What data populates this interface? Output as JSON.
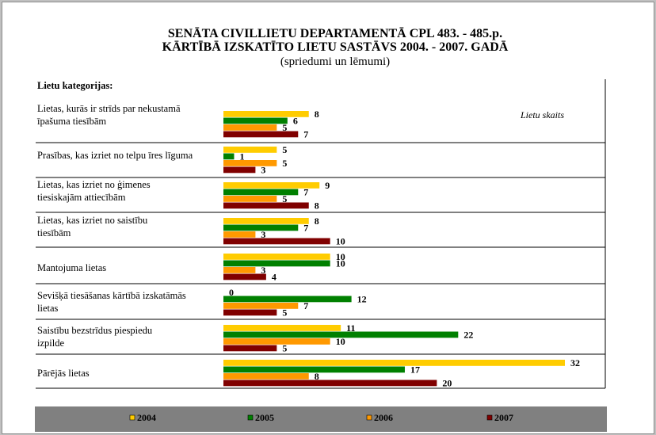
{
  "chart_data": {
    "type": "bar",
    "orientation": "horizontal",
    "title_lines": [
      "SENĀTA CIVILLIETU DEPARTAMENTĀ  CPL 483. - 485.p.",
      "KĀRTĪBĀ IZSKATĪTO LIETU SASTĀVS 2004. - 2007. GADĀ"
    ],
    "subtitle": "(spriedumi un lēmumi)",
    "category_heading": "Lietu kategorijas:",
    "value_caption": "Lietu skaits",
    "categories": [
      [
        "Lietas, kurās ir strīds par nekustamā",
        "īpašuma tiesībām"
      ],
      [
        "Prasības, kas izriet no telpu īres līguma"
      ],
      [
        "Lietas, kas izriet  no ģimenes",
        "tiesiskajām attiecībām"
      ],
      [
        "Lietas, kas izriet  no saistību",
        "tiesībām"
      ],
      [
        "Mantojuma lietas"
      ],
      [
        "Sevišķā tiesāšanas kārtībā izskatāmās",
        "lietas"
      ],
      [
        "Saistību bezstrīdus piespiedu",
        "izpilde"
      ],
      [
        "Pārējās lietas"
      ]
    ],
    "series": [
      {
        "name": "2004",
        "color": "#ffcc00",
        "values": [
          8,
          5,
          9,
          8,
          10,
          0,
          11,
          32
        ]
      },
      {
        "name": "2005",
        "color": "#008000",
        "values": [
          6,
          1,
          7,
          7,
          10,
          12,
          22,
          17
        ]
      },
      {
        "name": "2006",
        "color": "#ff9900",
        "values": [
          5,
          5,
          5,
          3,
          3,
          7,
          10,
          8
        ]
      },
      {
        "name": "2007",
        "color": "#800000",
        "values": [
          7,
          3,
          8,
          10,
          4,
          5,
          5,
          20
        ]
      }
    ],
    "xlim": [
      0,
      32
    ],
    "grid": false,
    "legend_position": "bottom"
  }
}
